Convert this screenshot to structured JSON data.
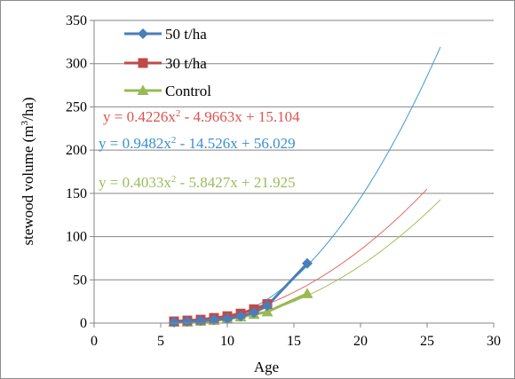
{
  "chart_data": {
    "type": "scatter",
    "xlabel": "Age",
    "ylabel": {
      "pre": "stewood volume (m",
      "sup": "3",
      "post": "/ha)"
    },
    "xlim": [
      0,
      30
    ],
    "ylim": [
      0,
      350
    ],
    "xticks": [
      0,
      5,
      10,
      15,
      20,
      25,
      30
    ],
    "yticks": [
      0,
      50,
      100,
      150,
      200,
      250,
      300,
      350
    ],
    "grid": "horizontal",
    "legend_position": "top-left",
    "series": [
      {
        "name": "50 t/ha",
        "color": "#4a7ebb",
        "marker": "diamond",
        "x": [
          6,
          7,
          8,
          9,
          10,
          11,
          12,
          13,
          16
        ],
        "y": [
          1,
          2,
          3,
          4,
          5,
          8,
          12,
          20,
          69
        ],
        "trend": {
          "a": 0.9482,
          "b": -14.526,
          "c": 56.029,
          "x_start": 6,
          "x_end": 26,
          "color": "#3d9ad6"
        },
        "equation": {
          "p1": "y = 0.9482x",
          "p2": "2",
          "p3": " - 14.526x + 56.029",
          "color": "#3a8fd0"
        }
      },
      {
        "name": "30 t/ha",
        "color": "#be4b48",
        "marker": "square",
        "x": [
          6,
          7,
          8,
          9,
          10,
          11,
          12,
          13
        ],
        "y": [
          2,
          3,
          4,
          6,
          8,
          11,
          16,
          22
        ],
        "trend": {
          "a": 0.4226,
          "b": -4.9663,
          "c": 15.104,
          "x_start": 6,
          "x_end": 25,
          "color": "#e26b66"
        },
        "equation": {
          "p1": "y = 0.4226x",
          "p2": "2",
          "p3": " - 4.9663x + 15.104",
          "color": "#d9534f"
        }
      },
      {
        "name": "Control",
        "color": "#98b954",
        "marker": "triangle",
        "x": [
          6,
          7,
          8,
          9,
          10,
          11,
          12,
          13,
          16
        ],
        "y": [
          1,
          1,
          2,
          3,
          5,
          7,
          10,
          13,
          34
        ],
        "trend": {
          "a": 0.4033,
          "b": -5.8427,
          "c": 21.925,
          "x_start": 7,
          "x_end": 26,
          "color": "#a3bf5a"
        },
        "equation": {
          "p1": "y = 0.4033x",
          "p2": "2",
          "p3": " - 5.8427x + 21.925",
          "color": "#9bbb59"
        }
      }
    ]
  }
}
